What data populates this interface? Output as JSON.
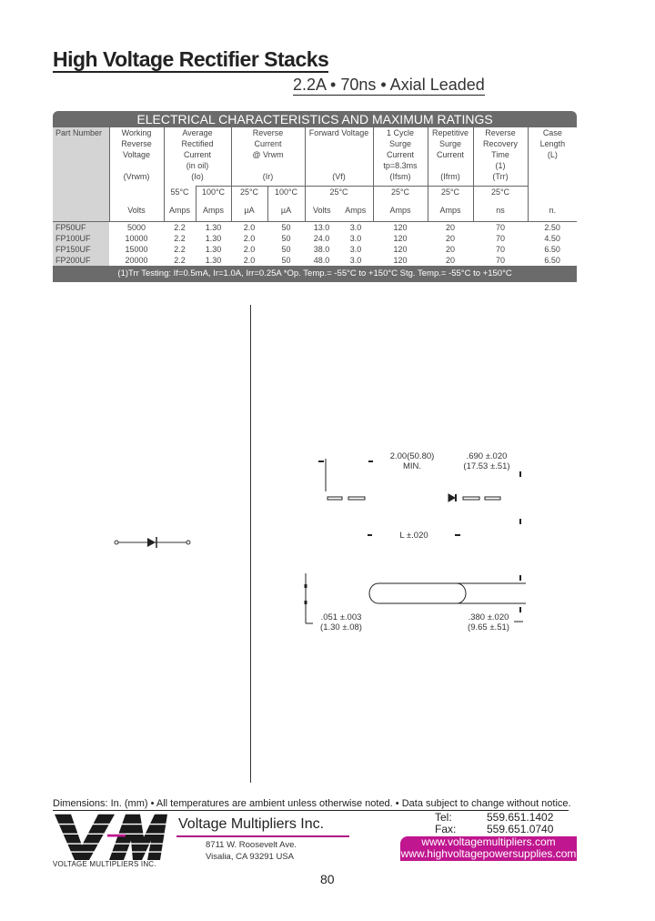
{
  "title": "High Voltage Rectifier Stacks",
  "subtitle": "2.2A • 70ns • Axial Leaded",
  "table": {
    "title": "ELECTRICAL CHARACTERISTICS AND MAXIMUM RATINGS",
    "headers": [
      [
        "Part Number"
      ],
      [
        "Working",
        "Reverse",
        "Voltage",
        "",
        "(Vrwm)"
      ],
      [
        "Average",
        "Rectified",
        "Current",
        "(in oil)",
        "(Io)"
      ],
      [
        "Reverse",
        "Current",
        "@ Vrwm",
        "",
        "(Ir)"
      ],
      [
        "Forward Voltage",
        "",
        "",
        "",
        "(Vf)"
      ],
      [
        "1 Cycle",
        "Surge",
        "Current",
        "tp=8.3ms",
        "(Ifsm)"
      ],
      [
        "Repetitive",
        "Surge",
        "Current",
        "",
        "(Ifrm)"
      ],
      [
        "Reverse",
        "Recovery",
        "Time",
        "(1)",
        "(Trr)"
      ],
      [
        "Case",
        "Length",
        "(L)"
      ]
    ],
    "temps": [
      "",
      "",
      "55°C",
      "100°C",
      "25°C",
      "100°C",
      "25°C",
      "25°C",
      "25°C",
      "25°C",
      ""
    ],
    "units": [
      "",
      "Volts",
      "Amps",
      "Amps",
      "µA",
      "µA",
      "Volts",
      "Amps",
      "Amps",
      "Amps",
      "ns",
      "n."
    ],
    "rows": [
      [
        "FP50UF",
        "5000",
        "2.2",
        "1.30",
        "2.0",
        "50",
        "13.0",
        "3.0",
        "120",
        "20",
        "70",
        "2.50"
      ],
      [
        "FP100UF",
        "10000",
        "2.2",
        "1.30",
        "2.0",
        "50",
        "24.0",
        "3.0",
        "120",
        "20",
        "70",
        "4.50"
      ],
      [
        "FP150UF",
        "15000",
        "2.2",
        "1.30",
        "2.0",
        "50",
        "38.0",
        "3.0",
        "120",
        "20",
        "70",
        "6.50"
      ],
      [
        "FP200UF",
        "20000",
        "2.2",
        "1.30",
        "2.0",
        "50",
        "48.0",
        "3.0",
        "120",
        "20",
        "70",
        "6.50"
      ]
    ],
    "footnote": "(1)Trr Testing:  If=0.5mA, Ir=1.0A, Irr=0.25A  *Op. Temp.= -55°C to +150°C  Stg. Temp.= -55°C to +150°C"
  },
  "drawing": {
    "lead_length": [
      "2.00(50.80)",
      "MIN."
    ],
    "body_dia": [
      ".690 ±.020",
      "(17.53 ±.51)"
    ],
    "length": "L ±.020",
    "lead_dia": [
      ".051 ±.003",
      "(1.30 ±.08)"
    ],
    "body_width": [
      ".380 ±.020",
      "(9.65 ±.51)"
    ]
  },
  "footer": {
    "notes": "Dimensions:  In. (mm)  •   All temperatures are ambient unless otherwise noted.   •  Data subject to change without notice.",
    "company": "Voltage Multipliers Inc.",
    "address": [
      "8711 W. Roosevelt Ave.",
      "Visalia, CA  93291  USA"
    ],
    "tel_label": "Tel:",
    "tel": "559.651.1402",
    "fax_label": "Fax:",
    "fax": "559.651.0740",
    "web": [
      "www.voltagemultipliers.com",
      "www.highvoltagepowersupplies.com"
    ],
    "logo_text": "VMI",
    "logo_caption": "VOLTAGE MULTIPLIERS INC.",
    "accent": "#c0168f",
    "page": "80"
  }
}
